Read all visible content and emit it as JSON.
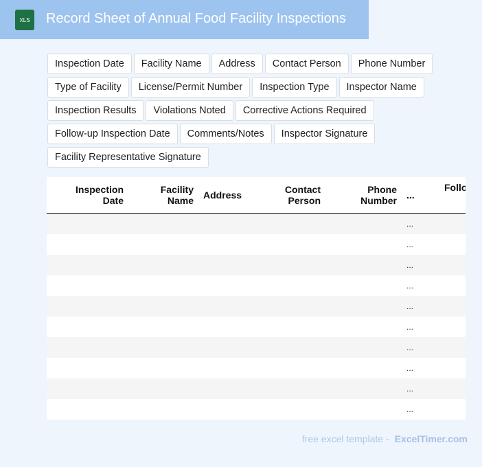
{
  "header": {
    "icon_label": "XLS",
    "title": "Record Sheet of Annual Food Facility Inspections"
  },
  "tags": [
    "Inspection Date",
    "Facility Name",
    "Address",
    "Contact Person",
    "Phone Number",
    "Type of Facility",
    "License/Permit Number",
    "Inspection Type",
    "Inspector Name",
    "Inspection Results",
    "Violations Noted",
    "Corrective Actions Required",
    "Follow-up Inspection Date",
    "Comments/Notes",
    "Inspector Signature",
    "Facility Representative Signature"
  ],
  "table": {
    "columns": [
      "Inspection Date",
      "Facility Name",
      "Address",
      "Contact Person",
      "Phone Number",
      "...",
      "Follo"
    ],
    "row_cells": [
      "...",
      "...",
      "...",
      "...",
      "...",
      "...",
      "...",
      "...",
      "...",
      "..."
    ]
  },
  "footer": {
    "text": "free excel template -",
    "brand": "ExcelTimer.com"
  }
}
